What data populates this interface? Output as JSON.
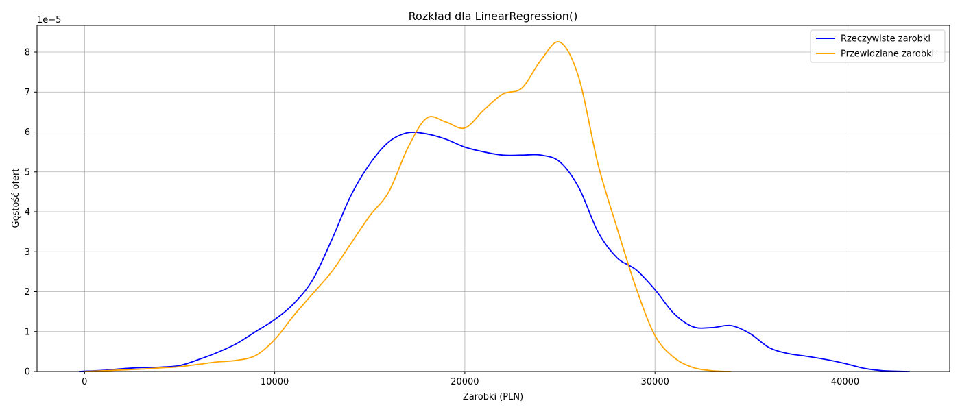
{
  "chart_data": {
    "type": "line",
    "title": "Rozkład dla LinearRegression()",
    "xlabel": "Zarobki (PLN)",
    "ylabel": "Gęstość ofert",
    "y_offset_text": "1e−5",
    "xlim": [
      -2500,
      45500
    ],
    "ylim": [
      0,
      8.67
    ],
    "xticks": [
      0,
      10000,
      20000,
      30000,
      40000
    ],
    "xtick_labels": [
      "0",
      "10000",
      "20000",
      "30000",
      "40000"
    ],
    "yticks": [
      0,
      1,
      2,
      3,
      4,
      5,
      6,
      7,
      8
    ],
    "ytick_labels": [
      "0",
      "1",
      "2",
      "3",
      "4",
      "5",
      "6",
      "7",
      "8"
    ],
    "grid": true,
    "legend_position": "top-right",
    "series": [
      {
        "name": "Rzeczywiste zarobki",
        "color": "#0000ff",
        "x": [
          -300,
          1000,
          2000,
          3000,
          4000,
          5000,
          6000,
          7000,
          8000,
          9000,
          10000,
          11000,
          12000,
          13000,
          14000,
          15000,
          16000,
          17000,
          18000,
          19000,
          20000,
          21000,
          22000,
          23000,
          24000,
          25000,
          26000,
          27000,
          28000,
          29000,
          30000,
          31000,
          32000,
          33000,
          34000,
          35000,
          36000,
          37000,
          38000,
          39000,
          40000,
          41000,
          42000,
          43400
        ],
        "values": [
          0.0,
          0.03,
          0.07,
          0.1,
          0.11,
          0.15,
          0.3,
          0.48,
          0.7,
          1.0,
          1.3,
          1.7,
          2.3,
          3.3,
          4.4,
          5.2,
          5.75,
          5.98,
          5.95,
          5.82,
          5.62,
          5.5,
          5.42,
          5.42,
          5.42,
          5.25,
          4.6,
          3.5,
          2.85,
          2.55,
          2.05,
          1.45,
          1.12,
          1.1,
          1.15,
          0.95,
          0.6,
          0.45,
          0.38,
          0.3,
          0.2,
          0.08,
          0.02,
          0.0
        ]
      },
      {
        "name": "Przewidziane zarobki",
        "color": "#ffa500",
        "x": [
          0,
          1000,
          2000,
          3000,
          4000,
          5000,
          6000,
          7000,
          8000,
          9000,
          10000,
          11000,
          12000,
          13000,
          14000,
          15000,
          16000,
          17000,
          18000,
          19000,
          20000,
          21000,
          22000,
          23000,
          24000,
          25000,
          26000,
          27000,
          28000,
          29000,
          30000,
          31000,
          32000,
          33000,
          34000
        ],
        "values": [
          0.0,
          0.02,
          0.04,
          0.06,
          0.09,
          0.12,
          0.18,
          0.24,
          0.28,
          0.4,
          0.8,
          1.4,
          1.95,
          2.5,
          3.2,
          3.9,
          4.5,
          5.6,
          6.35,
          6.25,
          6.1,
          6.55,
          6.95,
          7.1,
          7.8,
          8.25,
          7.35,
          5.2,
          3.6,
          2.1,
          0.9,
          0.35,
          0.1,
          0.02,
          0.0
        ]
      }
    ]
  }
}
